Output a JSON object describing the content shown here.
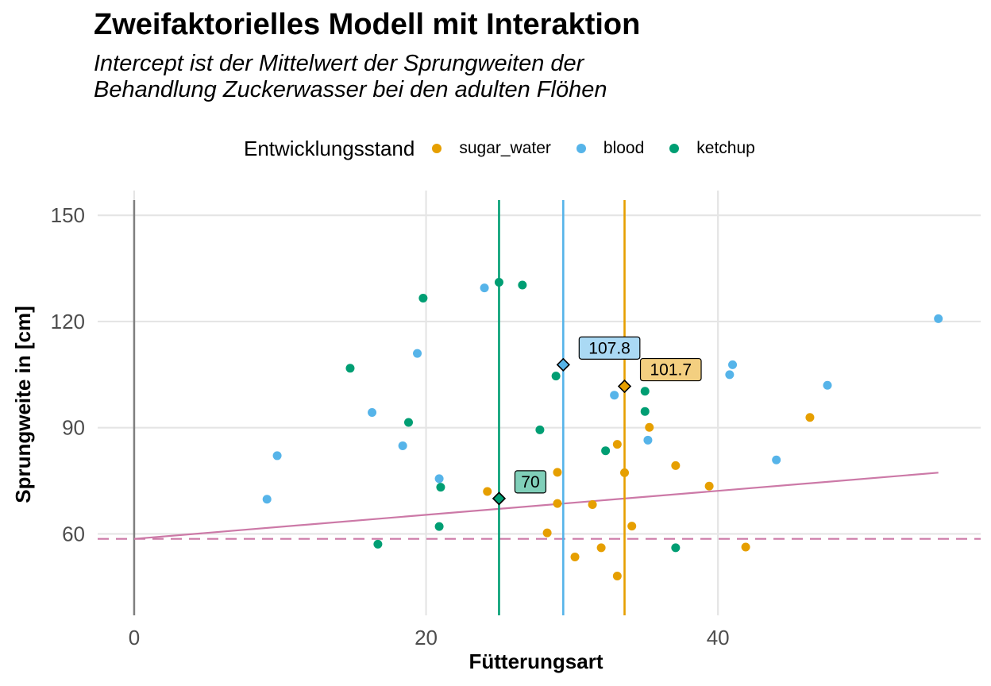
{
  "chart_data": {
    "type": "scatter",
    "title": "Zweifaktorielles Modell mit Interaktion",
    "subtitle_lines": [
      "Intercept ist der Mittelwert der Sprungweiten der",
      "Behandlung Zuckerwasser bei den adulten Flöhen"
    ],
    "xlabel": "Fütterungsart",
    "ylabel": "Sprungweite in [cm]",
    "xlim": [
      -2.5,
      58
    ],
    "ylim": [
      37,
      157
    ],
    "x_ticks": [
      0,
      20,
      40
    ],
    "x_tick_labels": [
      "0",
      "20",
      "40"
    ],
    "y_ticks": [
      60,
      90,
      120,
      150
    ],
    "y_tick_labels": [
      "60",
      "90",
      "120",
      "150"
    ],
    "grid": true,
    "legend_title": "Entwicklungsstand",
    "legend_position": "top",
    "series": [
      {
        "name": "sugar_water",
        "color": "#E69F00",
        "points": [
          [
            24.2,
            72
          ],
          [
            28.3,
            60.3
          ],
          [
            29.0,
            77.4
          ],
          [
            29.0,
            68.6
          ],
          [
            30.2,
            53.5
          ],
          [
            31.4,
            68.3
          ],
          [
            32.0,
            56.1
          ],
          [
            33.1,
            85.3
          ],
          [
            33.1,
            48.1
          ],
          [
            33.6,
            77.3
          ],
          [
            34.1,
            62.2
          ],
          [
            35.3,
            90.1
          ],
          [
            37.1,
            79.3
          ],
          [
            39.4,
            73.5
          ],
          [
            41.9,
            56.3
          ],
          [
            46.3,
            92.9
          ]
        ],
        "mean_x": 33.6,
        "mean_y": 101.7,
        "mean_label": "101.7"
      },
      {
        "name": "blood",
        "color": "#56B4E9",
        "points": [
          [
            9.1,
            69.8
          ],
          [
            9.8,
            82.1
          ],
          [
            16.3,
            94.3
          ],
          [
            18.4,
            84.9
          ],
          [
            19.4,
            111.0
          ],
          [
            20.9,
            75.6
          ],
          [
            24.0,
            129.5
          ],
          [
            32.9,
            99.2
          ],
          [
            35.2,
            86.5
          ],
          [
            40.8,
            105.0
          ],
          [
            41.0,
            107.8
          ],
          [
            44.0,
            80.9
          ],
          [
            47.5,
            102.0
          ],
          [
            55.1,
            120.8
          ]
        ],
        "mean_x": 29.4,
        "mean_y": 107.8,
        "mean_label": "107.8"
      },
      {
        "name": "ketchup",
        "color": "#009E73",
        "points": [
          [
            14.8,
            106.8
          ],
          [
            16.7,
            57.1
          ],
          [
            18.8,
            91.5
          ],
          [
            19.8,
            126.6
          ],
          [
            20.9,
            62.1
          ],
          [
            21.0,
            73.2
          ],
          [
            25.0,
            131.1
          ],
          [
            26.6,
            130.3
          ],
          [
            27.8,
            89.4
          ],
          [
            28.9,
            104.6
          ],
          [
            32.3,
            83.5
          ],
          [
            35.0,
            100.3
          ],
          [
            35.0,
            94.6
          ],
          [
            37.1,
            56.1
          ]
        ],
        "mean_x": 25.0,
        "mean_y": 70,
        "mean_label": "70"
      }
    ],
    "reference_lines": {
      "vertical_at_x": 0,
      "dashed_horizontal_y": 58.6,
      "regression_line": {
        "x": [
          0,
          55.1
        ],
        "y": [
          58.6,
          77.3
        ],
        "color": "#CC79A7"
      }
    }
  },
  "colors": {
    "grid": "#e5e5e5",
    "axis_text": "#4d4d4d",
    "zero_line": "#7f7f7f",
    "regression": "#CC79A7"
  }
}
